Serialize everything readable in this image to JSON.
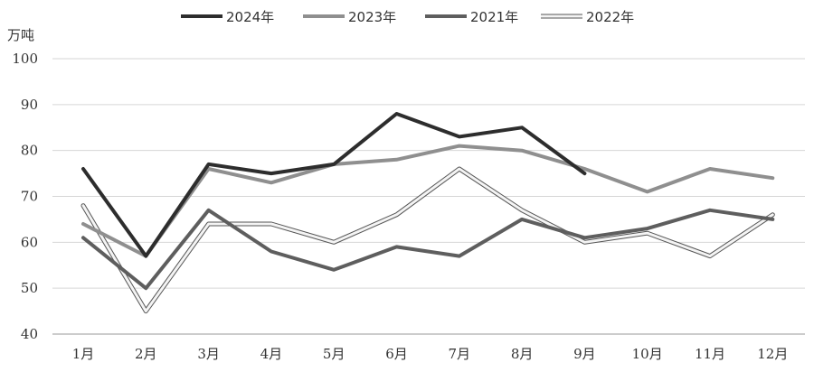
{
  "chart_data": {
    "type": "line",
    "ylabel": "万吨",
    "ylim": [
      40,
      100
    ],
    "yticks": [
      40,
      50,
      60,
      70,
      80,
      90,
      100
    ],
    "grid": true,
    "legend_position": "top-center",
    "categories": [
      "1月",
      "2月",
      "3月",
      "4月",
      "5月",
      "6月",
      "7月",
      "8月",
      "9月",
      "10月",
      "11月",
      "12月"
    ],
    "series": [
      {
        "name": "2024年",
        "color": "#2d2d2d",
        "style": "solid",
        "values": [
          76,
          57,
          77,
          75,
          77,
          88,
          83,
          85,
          75,
          null,
          null,
          null
        ]
      },
      {
        "name": "2023年",
        "color": "#8f8f8f",
        "style": "solid",
        "values": [
          64,
          57,
          76,
          73,
          77,
          78,
          81,
          80,
          76,
          71,
          76,
          74
        ]
      },
      {
        "name": "2021年",
        "color": "#5e5e5e",
        "style": "solid",
        "values": [
          61,
          50,
          67,
          58,
          54,
          59,
          57,
          65,
          61,
          63,
          67,
          65
        ]
      },
      {
        "name": "2022年",
        "color": "#f4f4f4",
        "style": "outlined",
        "values": [
          68,
          45,
          64,
          64,
          60,
          66,
          76,
          67,
          60,
          62,
          57,
          66
        ]
      }
    ]
  }
}
